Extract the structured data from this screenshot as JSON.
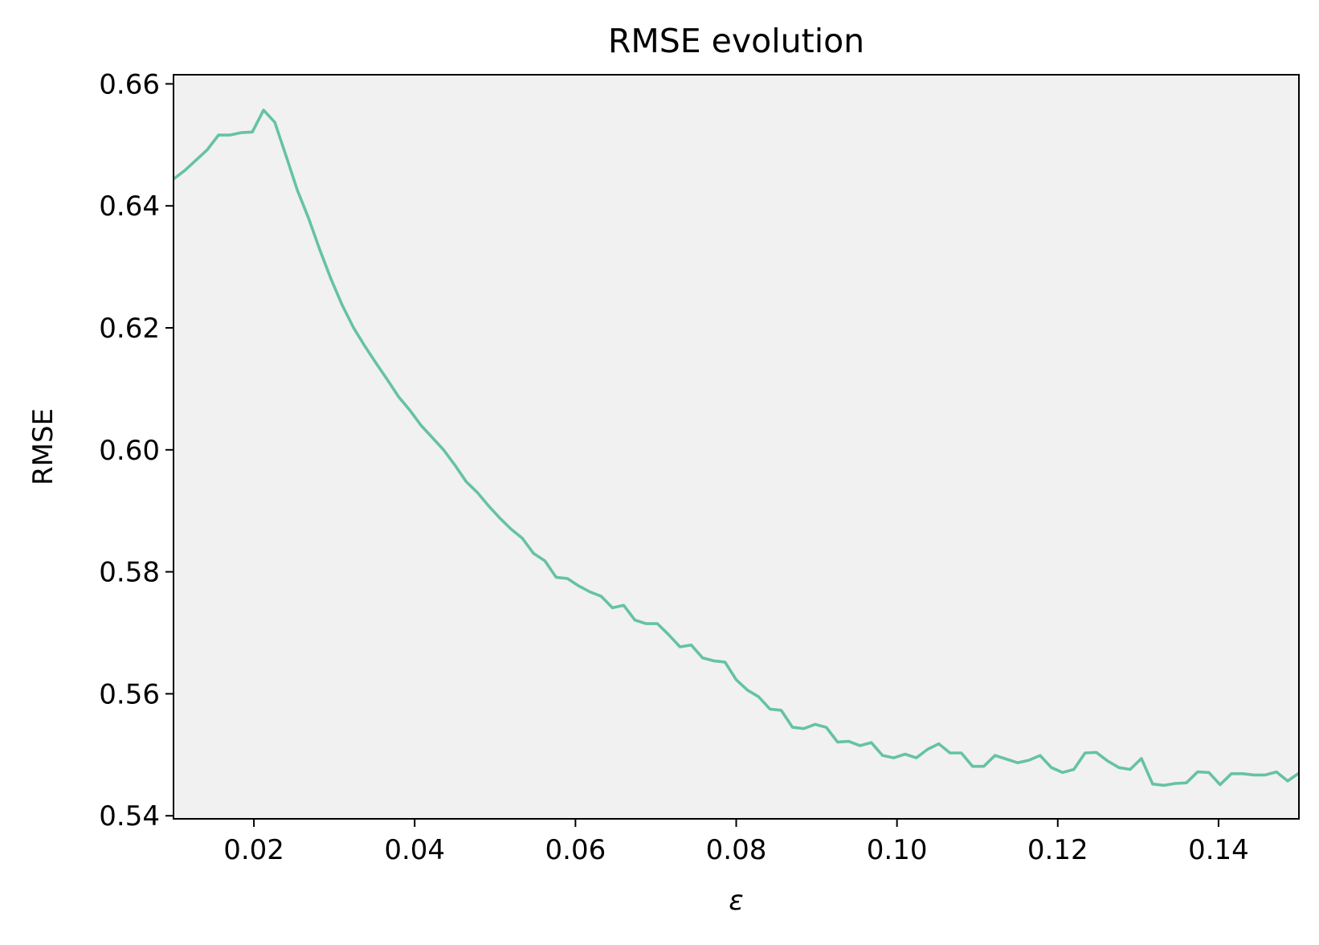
{
  "chart_data": {
    "type": "line",
    "title": "RMSE evolution",
    "xlabel": "ε",
    "ylabel": "RMSE",
    "xlim": [
      0.01,
      0.15
    ],
    "ylim": [
      0.5395,
      0.6615
    ],
    "xticks": [
      0.02,
      0.04,
      0.06,
      0.08,
      0.1,
      0.12,
      0.14
    ],
    "xtick_labels": [
      "0.02",
      "0.04",
      "0.06",
      "0.08",
      "0.10",
      "0.12",
      "0.14"
    ],
    "yticks": [
      0.54,
      0.56,
      0.58,
      0.6,
      0.62,
      0.64,
      0.66
    ],
    "ytick_labels": [
      "0.54",
      "0.56",
      "0.58",
      "0.60",
      "0.62",
      "0.64",
      "0.66"
    ],
    "grid": false,
    "plot_background": "#f1f1f1",
    "series": [
      {
        "color": "#66c2a5",
        "x": [
          0.01,
          0.0114,
          0.0128,
          0.0142,
          0.0156,
          0.017,
          0.0184,
          0.0198,
          0.0212,
          0.0226,
          0.024,
          0.0254,
          0.0268,
          0.0282,
          0.0296,
          0.031,
          0.0324,
          0.0338,
          0.0352,
          0.0366,
          0.038,
          0.0394,
          0.0408,
          0.0422,
          0.0436,
          0.045,
          0.0464,
          0.0478,
          0.0492,
          0.0506,
          0.052,
          0.0534,
          0.0548,
          0.0562,
          0.0576,
          0.059,
          0.0604,
          0.0618,
          0.0632,
          0.0646,
          0.066,
          0.0674,
          0.0688,
          0.0702,
          0.0716,
          0.073,
          0.0744,
          0.0758,
          0.0772,
          0.0786,
          0.08,
          0.0814,
          0.0828,
          0.0842,
          0.0856,
          0.087,
          0.0884,
          0.0898,
          0.0912,
          0.0926,
          0.094,
          0.0954,
          0.0968,
          0.0982,
          0.0996,
          0.101,
          0.1024,
          0.1038,
          0.1052,
          0.1066,
          0.108,
          0.1094,
          0.1108,
          0.1122,
          0.1136,
          0.115,
          0.1164,
          0.1178,
          0.1192,
          0.1206,
          0.122,
          0.1234,
          0.1248,
          0.1262,
          0.1276,
          0.129,
          0.1304,
          0.1318,
          0.1332,
          0.1346,
          0.136,
          0.1374,
          0.1388,
          0.1402,
          0.1416,
          0.143,
          0.1444,
          0.1458,
          0.1472,
          0.1486,
          0.15
        ],
        "y": [
          0.6444,
          0.6458,
          0.6475,
          0.6492,
          0.6516,
          0.6516,
          0.652,
          0.6521,
          0.6557,
          0.6537,
          0.6482,
          0.6426,
          0.638,
          0.6328,
          0.628,
          0.6237,
          0.62,
          0.617,
          0.6142,
          0.6115,
          0.6087,
          0.6065,
          0.604,
          0.602,
          0.6,
          0.5975,
          0.5948,
          0.593,
          0.5908,
          0.5888,
          0.587,
          0.5855,
          0.583,
          0.5818,
          0.5791,
          0.5789,
          0.5777,
          0.5767,
          0.576,
          0.5741,
          0.5745,
          0.5721,
          0.5715,
          0.5715,
          0.5697,
          0.5677,
          0.568,
          0.5659,
          0.5654,
          0.5652,
          0.5623,
          0.5606,
          0.5595,
          0.5575,
          0.5573,
          0.5545,
          0.5543,
          0.555,
          0.5545,
          0.5521,
          0.5522,
          0.5515,
          0.552,
          0.5499,
          0.5495,
          0.5501,
          0.5495,
          0.5509,
          0.5518,
          0.5503,
          0.5503,
          0.5481,
          0.5481,
          0.5499,
          0.5493,
          0.5487,
          0.5491,
          0.5499,
          0.5479,
          0.5471,
          0.5476,
          0.5503,
          0.5504,
          0.549,
          0.5479,
          0.5476,
          0.5494,
          0.5452,
          0.545,
          0.5453,
          0.5454,
          0.5472,
          0.5471,
          0.5451,
          0.5469,
          0.5469,
          0.5467,
          0.5467,
          0.5472,
          0.5457,
          0.547
        ]
      }
    ]
  }
}
